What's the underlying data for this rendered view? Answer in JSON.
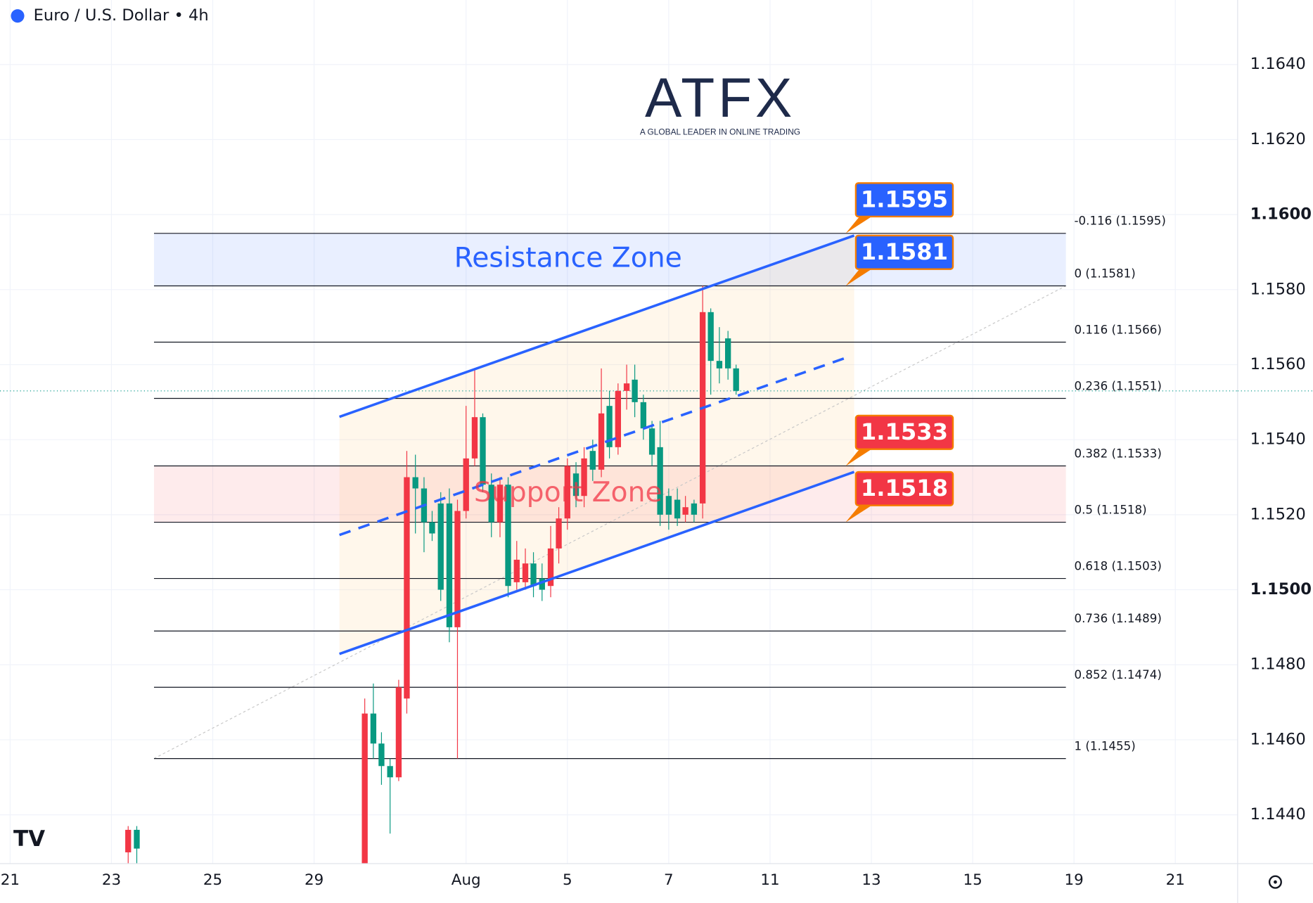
{
  "chart_data": {
    "type": "candlestick",
    "title": "Euro / U.S. Dollar • 4h",
    "brand": "ATFX",
    "brand_tagline": "A GLOBAL LEADER IN ONLINE TRADING",
    "up_color": "#f23645",
    "down_color": "#089981",
    "grid": true,
    "xlim": [
      -0.2,
      24.23
    ],
    "ylim": [
      1.1427,
      1.16572
    ],
    "xticks": [
      {
        "value": 0,
        "label": "21"
      },
      {
        "value": 2,
        "label": "23"
      },
      {
        "value": 4,
        "label": "25"
      },
      {
        "value": 6,
        "label": "29"
      },
      {
        "value": 9,
        "label": "Aug"
      },
      {
        "value": 11,
        "label": "5"
      },
      {
        "value": 13,
        "label": "7"
      },
      {
        "value": 15,
        "label": "11"
      },
      {
        "value": 17,
        "label": "13"
      },
      {
        "value": 19,
        "label": "15"
      },
      {
        "value": 21,
        "label": "19"
      },
      {
        "value": 23,
        "label": "21"
      }
    ],
    "yticks": [
      {
        "value": 1.144,
        "label": "1.1440"
      },
      {
        "value": 1.146,
        "label": "1.1460"
      },
      {
        "value": 1.148,
        "label": "1.1480"
      },
      {
        "value": 1.15,
        "label": "1.1500"
      },
      {
        "value": 1.152,
        "label": "1.1520"
      },
      {
        "value": 1.154,
        "label": "1.1540"
      },
      {
        "value": 1.156,
        "label": "1.1560"
      },
      {
        "value": 1.158,
        "label": "1.1580"
      },
      {
        "value": 1.16,
        "label": "1.1600"
      },
      {
        "value": 1.162,
        "label": "1.1620"
      },
      {
        "value": 1.164,
        "label": "1.1640"
      }
    ],
    "x": [
      2.33,
      2.5,
      7,
      7.17,
      7.33,
      7.5,
      7.67,
      7.83,
      8,
      8.17,
      8.33,
      8.5,
      8.67,
      8.83,
      9,
      9.17,
      9.33,
      9.5,
      9.67,
      9.83,
      10,
      10.17,
      10.33,
      10.5,
      10.67,
      10.83,
      11,
      11.17,
      11.33,
      11.5,
      11.67,
      11.83,
      12,
      12.17,
      12.33,
      12.5,
      12.67,
      12.83,
      13,
      13.17,
      13.33,
      13.5,
      13.67,
      13.83,
      14,
      14.17,
      14.33
    ],
    "open": [
      1.143,
      1.1436,
      1.142,
      1.1467,
      1.1459,
      1.1453,
      1.145,
      1.1471,
      1.153,
      1.1527,
      1.1518,
      1.1523,
      1.1523,
      1.149,
      1.1521,
      1.1535,
      1.1546,
      1.1528,
      1.1518,
      1.1528,
      1.1502,
      1.1502,
      1.1507,
      1.1503,
      1.1501,
      1.1511,
      1.1519,
      1.1531,
      1.1525,
      1.1537,
      1.1532,
      1.1549,
      1.1538,
      1.1553,
      1.1556,
      1.155,
      1.1543,
      1.1538,
      1.1525,
      1.1524,
      1.152,
      1.1523,
      1.1523,
      1.1574,
      1.1561,
      1.1567,
      1.1559
    ],
    "high": [
      1.1437,
      1.1437,
      1.1471,
      1.1475,
      1.1462,
      1.1455,
      1.1476,
      1.1537,
      1.1536,
      1.153,
      1.1521,
      1.1526,
      1.1527,
      1.1524,
      1.1549,
      1.1559,
      1.1547,
      1.1531,
      1.153,
      1.153,
      1.1513,
      1.1511,
      1.151,
      1.1507,
      1.1517,
      1.1522,
      1.1535,
      1.1534,
      1.1538,
      1.154,
      1.1559,
      1.1553,
      1.1555,
      1.156,
      1.156,
      1.1552,
      1.1545,
      1.1545,
      1.1527,
      1.1527,
      1.1525,
      1.1524,
      1.1581,
      1.1575,
      1.157,
      1.1569,
      1.156
    ],
    "low": [
      1.1427,
      1.1427,
      1.1415,
      1.1455,
      1.1448,
      1.1435,
      1.1449,
      1.1467,
      1.1515,
      1.151,
      1.1513,
      1.1497,
      1.1486,
      1.1455,
      1.1519,
      1.1533,
      1.1526,
      1.1514,
      1.1514,
      1.1498,
      1.15,
      1.15,
      1.1498,
      1.1497,
      1.1498,
      1.1507,
      1.1516,
      1.1522,
      1.1522,
      1.1529,
      1.153,
      1.1535,
      1.1536,
      1.1548,
      1.1546,
      1.154,
      1.1533,
      1.1517,
      1.1516,
      1.1517,
      1.1518,
      1.1518,
      1.1519,
      1.1552,
      1.1555,
      1.1556,
      1.1552
    ],
    "close": [
      1.1436,
      1.1431,
      1.1467,
      1.1459,
      1.1453,
      1.145,
      1.1474,
      1.153,
      1.1527,
      1.1518,
      1.1515,
      1.15,
      1.149,
      1.1521,
      1.1535,
      1.1546,
      1.1528,
      1.1518,
      1.1528,
      1.1501,
      1.1508,
      1.1507,
      1.1501,
      1.15,
      1.1511,
      1.1519,
      1.1533,
      1.1525,
      1.1535,
      1.1532,
      1.1547,
      1.1538,
      1.1553,
      1.1555,
      1.155,
      1.1543,
      1.1536,
      1.152,
      1.152,
      1.1519,
      1.1522,
      1.152,
      1.1574,
      1.1561,
      1.1559,
      1.1559,
      1.1553
    ],
    "last_price": 1.1553,
    "last_price_color": "#26a69a",
    "fib_x": [
      2.84,
      20.84
    ],
    "fib_levels": [
      {
        "label": "-0.116 (1.1595)",
        "value": 1.1595
      },
      {
        "label": "0 (1.1581)",
        "value": 1.1581
      },
      {
        "label": "0.116 (1.1566)",
        "value": 1.1566
      },
      {
        "label": "0.236 (1.1551)",
        "value": 1.1551
      },
      {
        "label": "0.382 (1.1533)",
        "value": 1.1533
      },
      {
        "label": "0.5 (1.1518)",
        "value": 1.1518
      },
      {
        "label": "0.618 (1.1503)",
        "value": 1.1503
      },
      {
        "label": "0.736 (1.1489)",
        "value": 1.1489
      },
      {
        "label": "0.852 (1.1474)",
        "value": 1.1474
      },
      {
        "label": "1 (1.1455)",
        "value": 1.1455
      }
    ],
    "zones": [
      {
        "label": "Resistance Zone",
        "low": 1.1581,
        "high": 1.1595,
        "color": "#2962ff"
      },
      {
        "label": "Support Zone",
        "low": 1.1518,
        "high": 1.1533,
        "color": "#f23645"
      }
    ],
    "channel": {
      "x": [
        6.5,
        16.66
      ],
      "upper": [
        1.15461,
        1.15944
      ],
      "lower": [
        1.14829,
        1.15314
      ],
      "middle": [
        1.15146,
        1.15622
      ],
      "color": "#2962ff"
    },
    "callouts": [
      {
        "value": 1.1595,
        "color": "#2962ff"
      },
      {
        "value": 1.1581,
        "color": "#2962ff"
      },
      {
        "value": 1.1533,
        "color": "#f23645"
      },
      {
        "value": 1.1518,
        "color": "#f23645"
      }
    ]
  }
}
